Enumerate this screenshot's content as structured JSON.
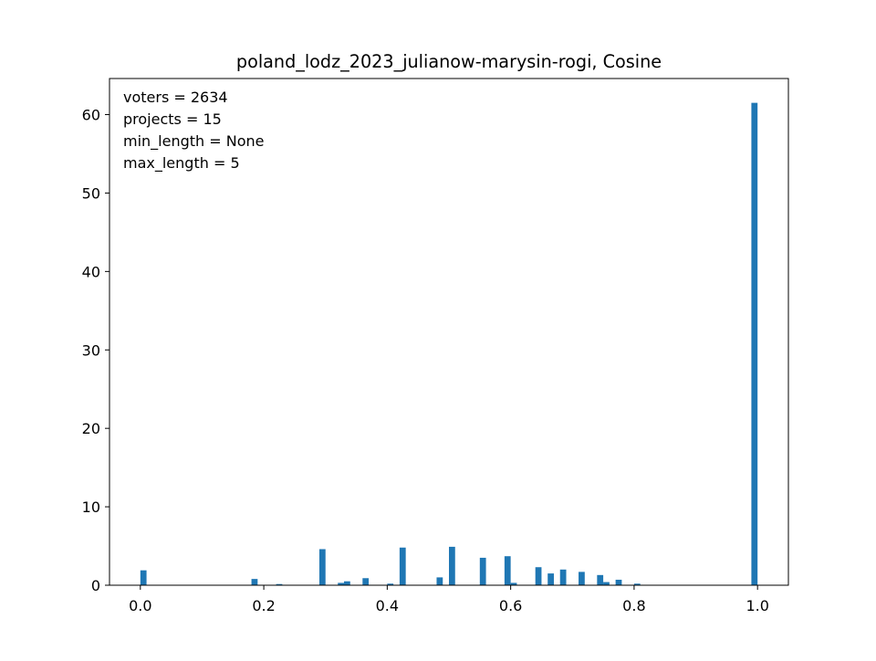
{
  "chart_data": {
    "type": "bar",
    "title": "poland_lodz_2023_julianow-marysin-rogi, Cosine",
    "xlabel": "",
    "ylabel": "",
    "xlim": [
      -0.05,
      1.05
    ],
    "ylim": [
      0,
      64.6
    ],
    "x_ticks": [
      "0.0",
      "0.2",
      "0.4",
      "0.6",
      "0.8",
      "1.0"
    ],
    "y_ticks": [
      "0",
      "10",
      "20",
      "30",
      "40",
      "50",
      "60"
    ],
    "grid": false,
    "bin_width": 0.01,
    "color": "#1f77b4",
    "annotations": [
      "voters = 2634",
      "projects = 15",
      "min_length = None",
      "max_length = 5"
    ],
    "bins": [
      0.0,
      0.1,
      0.13,
      0.18,
      0.2,
      0.22,
      0.24,
      0.26,
      0.29,
      0.32,
      0.33,
      0.36,
      0.4,
      0.42,
      0.48,
      0.5,
      0.55,
      0.59,
      0.6,
      0.64,
      0.66,
      0.68,
      0.71,
      0.74,
      0.75,
      0.77,
      0.8,
      0.99
    ],
    "values": [
      1.9,
      0.05,
      0.05,
      0.8,
      0.05,
      0.15,
      0.05,
      0.05,
      4.6,
      0.3,
      0.5,
      0.9,
      0.2,
      4.8,
      1.0,
      4.9,
      3.5,
      3.7,
      0.3,
      2.3,
      1.5,
      2.0,
      1.7,
      1.3,
      0.4,
      0.7,
      0.2,
      61.5
    ]
  }
}
